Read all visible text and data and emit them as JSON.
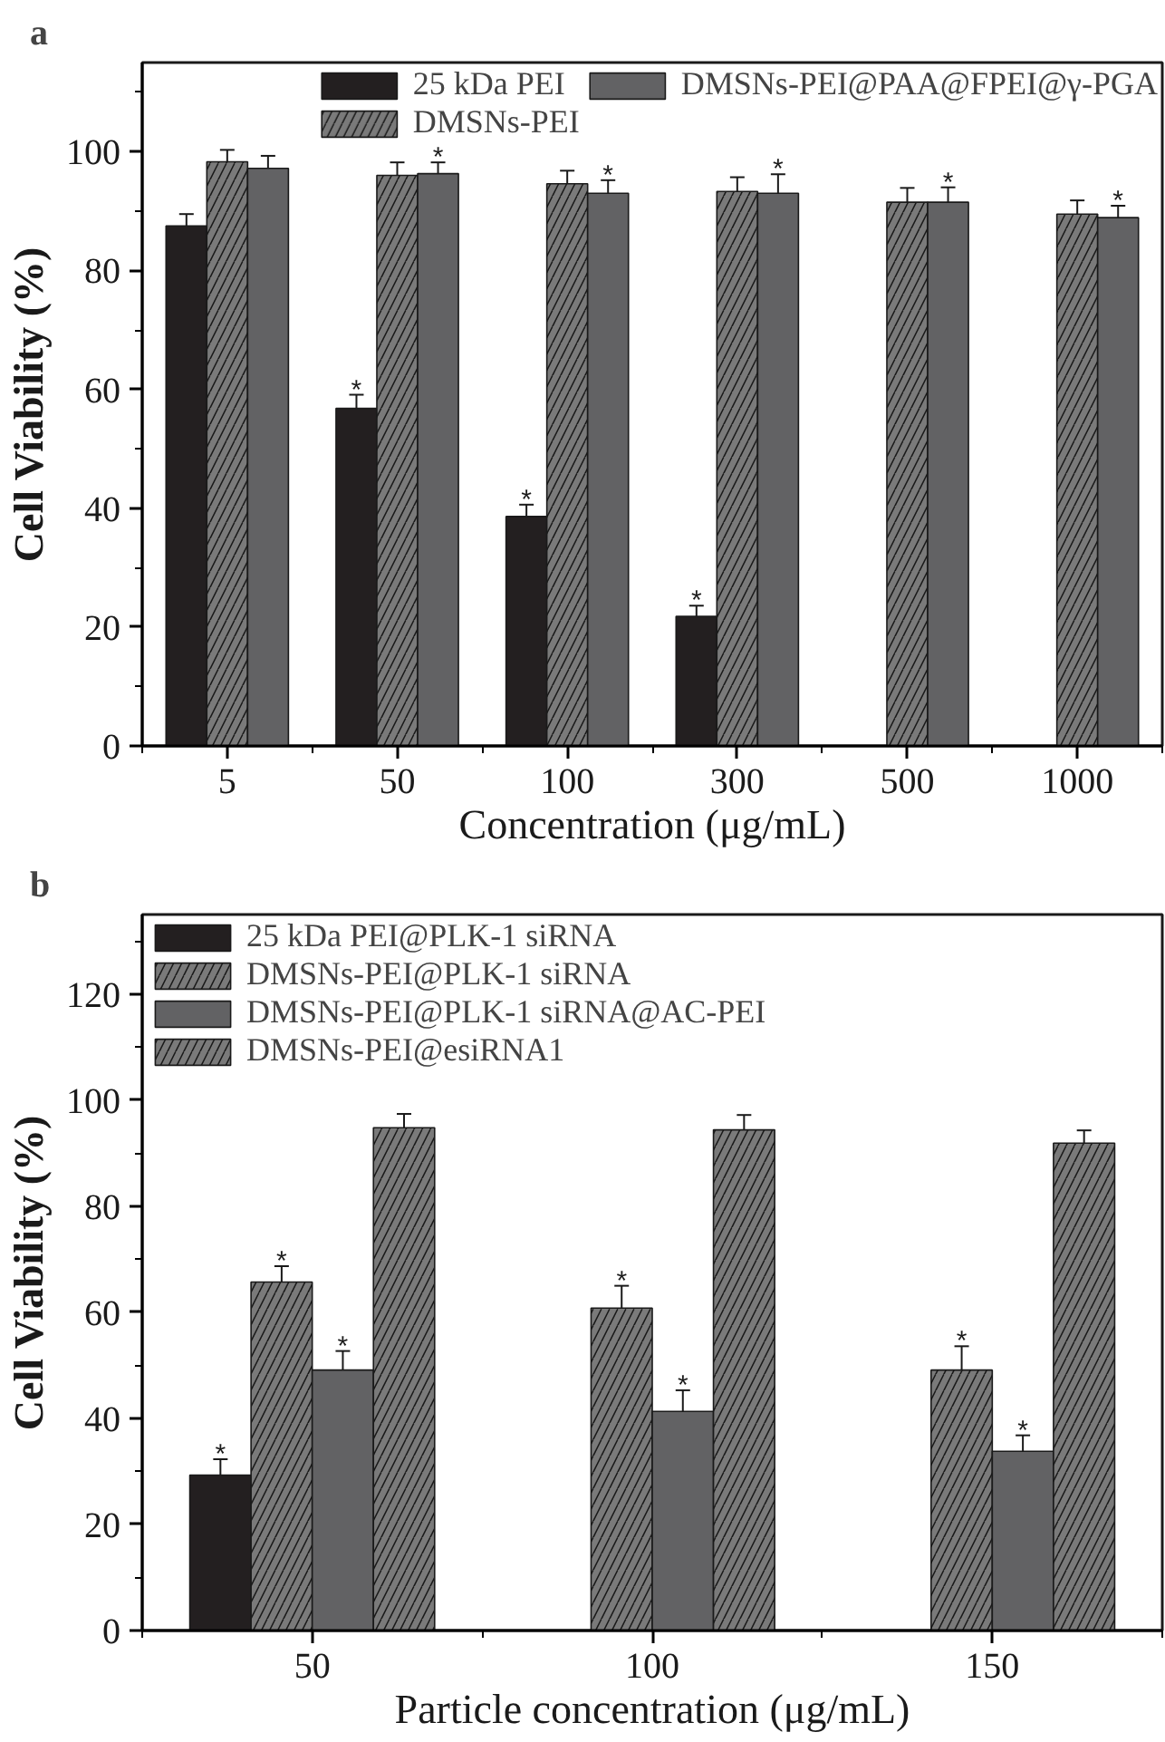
{
  "chart_data": [
    {
      "type": "bar",
      "title": "a",
      "xlabel": "Concentration (μg/mL)",
      "ylabel": "Cell Viability (%)",
      "categories": [
        "5",
        "50",
        "100",
        "300",
        "500",
        "1000"
      ],
      "ylim": [
        0,
        115
      ],
      "yticks": [
        0,
        20,
        40,
        60,
        80,
        100
      ],
      "grid": false,
      "legend": "top right",
      "series": [
        {
          "name": "25 kDa PEI",
          "color": "#231f20",
          "values": [
            87.5,
            56.8,
            38.6,
            21.8,
            null,
            null
          ],
          "errors": [
            2.0,
            2.3,
            2.0,
            1.8,
            null,
            null
          ],
          "value_labels": [
            null,
            "*",
            "*",
            "*",
            null,
            null
          ]
        },
        {
          "name": "DMSNs-PEI",
          "color": "#7a7a7a",
          "values": [
            98.3,
            96.0,
            94.6,
            93.3,
            91.5,
            89.5
          ],
          "errors": [
            2.0,
            2.2,
            2.2,
            2.4,
            2.4,
            2.3
          ],
          "value_labels": [
            null,
            null,
            null,
            null,
            null,
            null
          ]
        },
        {
          "name": "DMSNs-PEI@PAA@FPEI@γ-PGA",
          "color": "#626264",
          "values": [
            97.2,
            96.3,
            93.0,
            93.0,
            91.5,
            88.9
          ],
          "errors": [
            2.1,
            1.9,
            2.2,
            3.2,
            2.5,
            2.0
          ],
          "value_labels": [
            null,
            "*",
            "*",
            "*",
            "*",
            "*"
          ]
        }
      ]
    },
    {
      "type": "bar",
      "title": "b",
      "xlabel": "Particle concentration (μg/mL)",
      "ylabel": "Cell Viability (%)",
      "categories": [
        "50",
        "100",
        "150"
      ],
      "ylim": [
        0,
        135
      ],
      "yticks": [
        0,
        20,
        40,
        60,
        80,
        100,
        120
      ],
      "grid": false,
      "legend": "top left",
      "series": [
        {
          "name": "25 kDa PEI@PLK-1 siRNA",
          "color": "#231f20",
          "values": [
            29.3,
            null,
            null
          ],
          "errors": [
            3.0,
            null,
            null
          ],
          "value_labels": [
            "*",
            null,
            null
          ]
        },
        {
          "name": "DMSNs-PEI@PLK-1 siRNA",
          "color": "#7a7a7a",
          "values": [
            65.7,
            60.8,
            49.1
          ],
          "errors": [
            3.0,
            4.2,
            4.5
          ],
          "value_labels": [
            "*",
            "*",
            "*"
          ]
        },
        {
          "name": "DMSNs-PEI@PLK-1 siRNA@AC-PEI",
          "color": "#626264",
          "values": [
            49.1,
            41.3,
            33.8
          ],
          "errors": [
            3.6,
            4.0,
            3.0
          ],
          "value_labels": [
            "*",
            "*",
            "*"
          ]
        },
        {
          "name": "DMSNs-PEI@esiRNA1",
          "color": "#7a7a7a",
          "values": [
            94.8,
            94.4,
            91.9
          ],
          "errors": [
            2.6,
            2.8,
            2.4
          ],
          "value_labels": [
            null,
            null,
            null
          ]
        }
      ]
    }
  ]
}
